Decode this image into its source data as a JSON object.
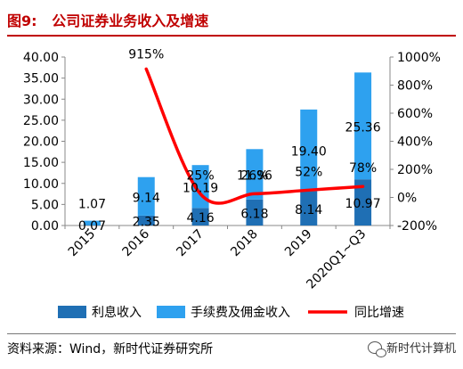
{
  "title": "图9:   公司证券业务收入及增速",
  "source": "资料来源：Wind，新时代证券研究所",
  "watermark": "新时代计算机",
  "colors": {
    "interest": "#1f6fb4",
    "commission": "#2ea1ef",
    "growth": "#ff0000",
    "title": "#c00000"
  },
  "chart_data": {
    "type": "bar",
    "stacked": true,
    "categories": [
      "2015",
      "2016",
      "2017",
      "2018",
      "2019",
      "2020Q1~Q3"
    ],
    "series": [
      {
        "name": "利息收入",
        "type": "bar",
        "values": [
          0.07,
          2.35,
          4.16,
          6.18,
          8.14,
          10.97
        ],
        "labels": [
          "0.07",
          "2.35",
          "4.16",
          "6.18",
          "8.14",
          "10.97"
        ]
      },
      {
        "name": "手续费及佣金收入",
        "type": "bar",
        "values": [
          1.07,
          9.14,
          10.19,
          11.96,
          19.4,
          25.36
        ],
        "labels": [
          "1.07",
          "9.14",
          "10.19",
          "11.96",
          "19.40",
          "25.36"
        ]
      },
      {
        "name": "同比增速",
        "type": "line",
        "axis": "right",
        "x": [
          "2016",
          "2017",
          "2018",
          "2019",
          "2020Q1~Q3"
        ],
        "values": [
          915,
          25,
          26,
          52,
          78
        ],
        "labels": [
          "915%",
          "25%",
          "26%",
          "52%",
          "78%"
        ]
      }
    ],
    "ylim": [
      0,
      40
    ],
    "yticks": [
      "0.00",
      "5.00",
      "10.00",
      "15.00",
      "20.00",
      "25.00",
      "30.00",
      "35.00",
      "40.00"
    ],
    "y2lim": [
      -200,
      1000
    ],
    "y2ticks": [
      "-200%",
      "0%",
      "200%",
      "400%",
      "600%",
      "800%",
      "1000%"
    ],
    "legend_position": "bottom",
    "grid": false
  }
}
